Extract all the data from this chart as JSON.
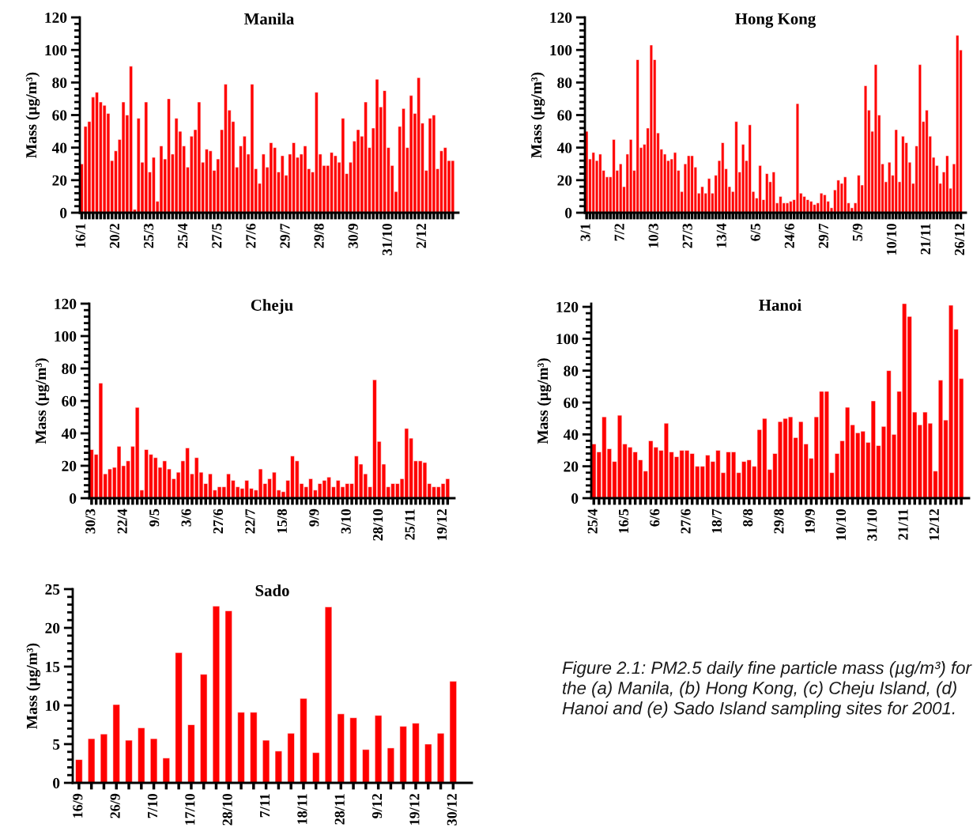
{
  "chart_data": [
    {
      "type": "bar",
      "title": "Manila",
      "ylabel": "Mass (µg/m³)",
      "color": "#ff0000",
      "ylim": [
        0,
        120
      ],
      "yticks": [
        0,
        20,
        40,
        60,
        80,
        100,
        120
      ],
      "categories": [
        "16/1",
        null,
        null,
        null,
        null,
        null,
        null,
        null,
        null,
        "20/2",
        null,
        null,
        null,
        null,
        null,
        null,
        null,
        null,
        "25/3",
        null,
        null,
        null,
        null,
        null,
        null,
        null,
        null,
        "25/4",
        null,
        null,
        null,
        null,
        null,
        null,
        null,
        null,
        "27/5",
        null,
        null,
        null,
        null,
        null,
        null,
        null,
        null,
        "27/6",
        null,
        null,
        null,
        null,
        null,
        null,
        null,
        null,
        "29/7",
        null,
        null,
        null,
        null,
        null,
        null,
        null,
        null,
        "29/8",
        null,
        null,
        null,
        null,
        null,
        null,
        null,
        null,
        "30/9",
        null,
        null,
        null,
        null,
        null,
        null,
        null,
        null,
        "31/10",
        null,
        null,
        null,
        null,
        null,
        null,
        null,
        null,
        "2/12",
        null,
        null,
        null,
        null,
        null,
        null,
        null,
        null
      ],
      "values": [
        30,
        53,
        56,
        71,
        74,
        68,
        66,
        61,
        32,
        38,
        45,
        68,
        60,
        90,
        2,
        58,
        31,
        68,
        25,
        34,
        7,
        41,
        33,
        70,
        36,
        58,
        50,
        41,
        28,
        47,
        51,
        68,
        31,
        39,
        38,
        26,
        33,
        51,
        79,
        63,
        56,
        28,
        41,
        47,
        36,
        79,
        27,
        18,
        36,
        28,
        43,
        40,
        25,
        35,
        23,
        36,
        43,
        34,
        36,
        41,
        27,
        25,
        74,
        36,
        29,
        29,
        37,
        35,
        31,
        58,
        24,
        31,
        44,
        51,
        47,
        68,
        40,
        52,
        82,
        65,
        75,
        40,
        29,
        13,
        53,
        64,
        40,
        72,
        61,
        83,
        55,
        26,
        58,
        60,
        27,
        38,
        40,
        32,
        32
      ]
    },
    {
      "type": "bar",
      "title": "Hong Kong",
      "ylabel": "Mass (µg/m³)",
      "color": "#ff0000",
      "ylim": [
        0,
        120
      ],
      "yticks": [
        0,
        20,
        40,
        60,
        80,
        100,
        120
      ],
      "categories": [
        "3/1",
        null,
        null,
        null,
        null,
        null,
        null,
        null,
        null,
        null,
        "7/2",
        null,
        null,
        null,
        null,
        null,
        null,
        null,
        null,
        null,
        "10/3",
        null,
        null,
        null,
        null,
        null,
        null,
        null,
        null,
        null,
        "27/3",
        null,
        null,
        null,
        null,
        null,
        null,
        null,
        null,
        null,
        "13/4",
        null,
        null,
        null,
        null,
        null,
        null,
        null,
        null,
        null,
        "6/5",
        null,
        null,
        null,
        null,
        null,
        null,
        null,
        null,
        null,
        "24/6",
        null,
        null,
        null,
        null,
        null,
        null,
        null,
        null,
        null,
        "29/7",
        null,
        null,
        null,
        null,
        null,
        null,
        null,
        null,
        null,
        "5/9",
        null,
        null,
        null,
        null,
        null,
        null,
        null,
        null,
        null,
        "10/10",
        null,
        null,
        null,
        null,
        null,
        null,
        null,
        null,
        null,
        "21/11",
        null,
        null,
        null,
        null,
        null,
        null,
        null,
        null,
        null,
        "26/12"
      ],
      "values": [
        50,
        33,
        37,
        32,
        36,
        26,
        22,
        22,
        45,
        26,
        30,
        16,
        36,
        45,
        26,
        94,
        40,
        42,
        52,
        103,
        94,
        49,
        39,
        36,
        32,
        33,
        37,
        26,
        13,
        30,
        35,
        35,
        28,
        12,
        16,
        12,
        21,
        12,
        23,
        32,
        43,
        27,
        16,
        13,
        56,
        25,
        42,
        32,
        54,
        13,
        9,
        29,
        8,
        24,
        19,
        25,
        6,
        10,
        6,
        6,
        7,
        8,
        67,
        12,
        10,
        8,
        7,
        5,
        6,
        12,
        11,
        7,
        3,
        14,
        20,
        18,
        22,
        6,
        3,
        6,
        23,
        17,
        78,
        63,
        50,
        91,
        60,
        30,
        19,
        31,
        23,
        51,
        19,
        47,
        43,
        31,
        18,
        41,
        91,
        56,
        63,
        47,
        34,
        29,
        18,
        25,
        35,
        15,
        30,
        109,
        100
      ]
    },
    {
      "type": "bar",
      "title": "Cheju",
      "ylabel": "Mass (µg/m³)",
      "color": "#ff0000",
      "ylim": [
        0,
        120
      ],
      "yticks": [
        0,
        20,
        40,
        60,
        80,
        100,
        120
      ],
      "categories": [
        "30/3",
        null,
        null,
        null,
        null,
        null,
        null,
        "22/4",
        null,
        null,
        null,
        null,
        null,
        null,
        "9/5",
        null,
        null,
        null,
        null,
        null,
        null,
        "3/6",
        null,
        null,
        null,
        null,
        null,
        null,
        "27/6",
        null,
        null,
        null,
        null,
        null,
        null,
        "22/7",
        null,
        null,
        null,
        null,
        null,
        null,
        "15/8",
        null,
        null,
        null,
        null,
        null,
        null,
        "9/9",
        null,
        null,
        null,
        null,
        null,
        null,
        "3/10",
        null,
        null,
        null,
        null,
        null,
        null,
        "28/10",
        null,
        null,
        null,
        null,
        null,
        null,
        "25/11",
        null,
        null,
        null,
        null,
        null,
        null,
        "19/12",
        null
      ],
      "values": [
        30,
        27,
        71,
        15,
        18,
        19,
        32,
        20,
        23,
        32,
        56,
        5,
        30,
        27,
        25,
        19,
        23,
        18,
        12,
        16,
        23,
        31,
        15,
        25,
        16,
        9,
        15,
        5,
        7,
        7,
        15,
        11,
        7,
        6,
        11,
        6,
        5,
        18,
        9,
        12,
        16,
        5,
        4,
        11,
        26,
        23,
        9,
        7,
        12,
        5,
        9,
        11,
        13,
        7,
        11,
        7,
        9,
        9,
        26,
        21,
        15,
        7,
        73,
        35,
        21,
        7,
        9,
        9,
        12,
        43,
        37,
        23,
        23,
        22,
        9,
        7,
        7,
        9,
        12
      ]
    },
    {
      "type": "bar",
      "title": "Hanoi",
      "ylabel": "Mass (µg/m³)",
      "color": "#ff0000",
      "ylim": [
        0,
        122
      ],
      "yticks": [
        0,
        20,
        40,
        60,
        80,
        100,
        120
      ],
      "categories": [
        "25/4",
        null,
        null,
        null,
        null,
        null,
        "16/5",
        null,
        null,
        null,
        null,
        null,
        "6/6",
        null,
        null,
        null,
        null,
        null,
        "27/6",
        null,
        null,
        null,
        null,
        null,
        "18/7",
        null,
        null,
        null,
        null,
        null,
        "8/8",
        null,
        null,
        null,
        null,
        null,
        "29/8",
        null,
        null,
        null,
        null,
        null,
        "19/9",
        null,
        null,
        null,
        null,
        null,
        "10/10",
        null,
        null,
        null,
        null,
        null,
        "31/10",
        null,
        null,
        null,
        null,
        null,
        "21/11",
        null,
        null,
        null,
        null,
        null,
        "12/12",
        null,
        null,
        null,
        null,
        null
      ],
      "values": [
        34,
        29,
        51,
        31,
        23,
        52,
        34,
        32,
        29,
        24,
        17,
        36,
        32,
        30,
        47,
        29,
        26,
        30,
        30,
        28,
        20,
        20,
        27,
        23,
        30,
        16,
        29,
        29,
        16,
        23,
        24,
        20,
        43,
        50,
        18,
        28,
        48,
        50,
        51,
        38,
        48,
        34,
        25,
        51,
        67,
        67,
        16,
        28,
        36,
        57,
        46,
        41,
        42,
        35,
        61,
        33,
        45,
        80,
        40,
        67,
        122,
        114,
        54,
        46,
        54,
        47,
        17,
        74,
        49,
        121,
        106,
        75
      ]
    },
    {
      "type": "bar",
      "title": "Sado",
      "ylabel": "Mass (µg/m³)",
      "color": "#ff0000",
      "ylim": [
        0,
        25
      ],
      "yticks": [
        0,
        5,
        10,
        15,
        20,
        25
      ],
      "categories": [
        "16/9",
        null,
        null,
        "26/9",
        null,
        null,
        "7/10",
        null,
        null,
        "17/10",
        null,
        null,
        "28/10",
        null,
        null,
        "7/11",
        null,
        null,
        "18/11",
        null,
        null,
        "28/11",
        null,
        null,
        "9/12",
        null,
        null,
        "19/12",
        null,
        null,
        "30/12"
      ],
      "values": [
        3.0,
        5.7,
        6.3,
        10.1,
        5.5,
        7.1,
        5.7,
        3.2,
        16.8,
        7.5,
        14.0,
        22.8,
        22.2,
        9.1,
        9.1,
        5.5,
        4.1,
        6.4,
        10.9,
        3.9,
        22.7,
        8.9,
        8.4,
        4.3,
        8.7,
        4.5,
        7.3,
        7.7,
        5.0,
        6.4,
        13.1
      ],
      "annotations": [
        "Figure 2.1: PM2.5 daily fine particle mass (µg/m³) for the (a) Manila, (b) Hong Kong, (c) Cheju Island, (d) Hanoi and (e) Sado Island sampling sites for 2001."
      ]
    }
  ]
}
